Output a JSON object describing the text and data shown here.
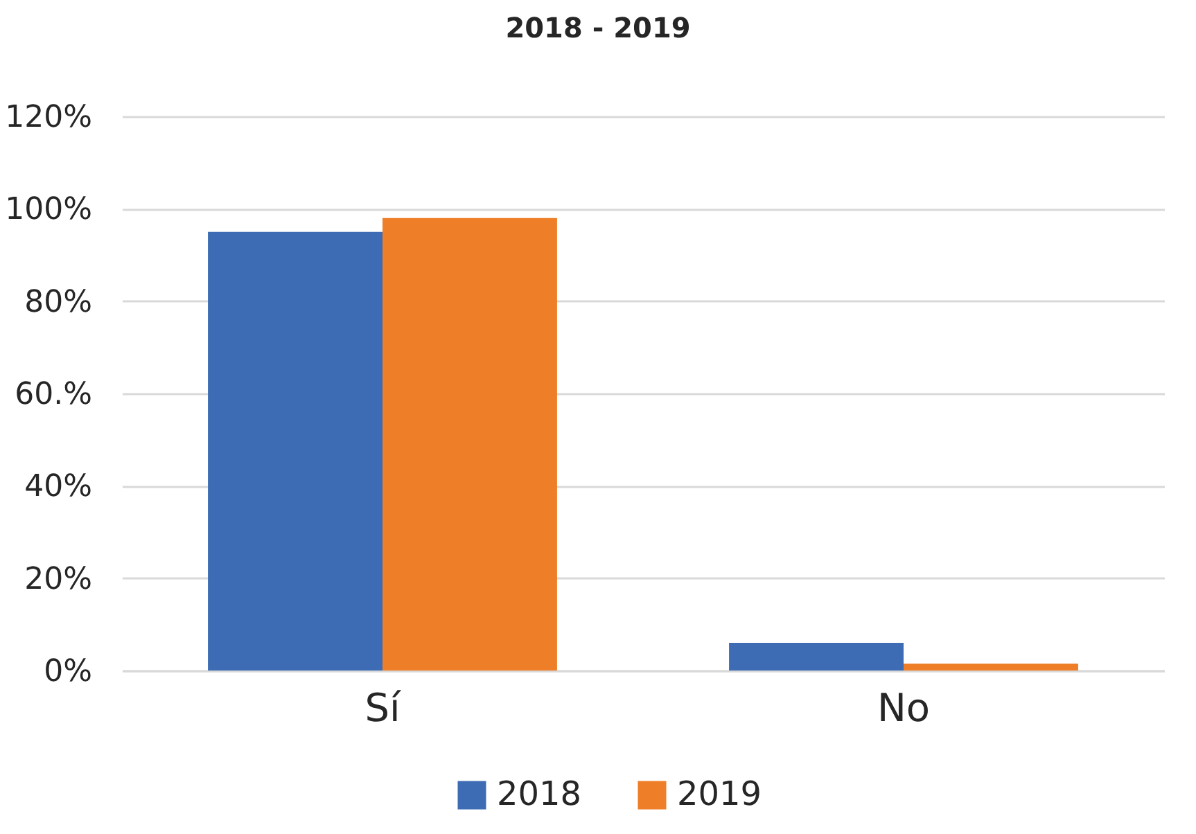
{
  "chart_data": {
    "type": "bar",
    "title": "2018 - 2019",
    "categories": [
      "Sí",
      "No"
    ],
    "series": [
      {
        "name": "2018",
        "color": "#3d6cb5",
        "values": [
          95,
          6
        ]
      },
      {
        "name": "2019",
        "color": "#ee7e27",
        "values": [
          98,
          1.5
        ]
      }
    ],
    "ylim": [
      0,
      120
    ],
    "yticks": [
      {
        "value": 0,
        "label": "0%"
      },
      {
        "value": 20,
        "label": "20%"
      },
      {
        "value": 40,
        "label": "40%"
      },
      {
        "value": 60,
        "label": "60.%"
      },
      {
        "value": 80,
        "label": "80%"
      },
      {
        "value": 100,
        "label": "100%"
      },
      {
        "value": 120,
        "label": "120%"
      }
    ],
    "grid": "y",
    "legend": "bottom"
  }
}
